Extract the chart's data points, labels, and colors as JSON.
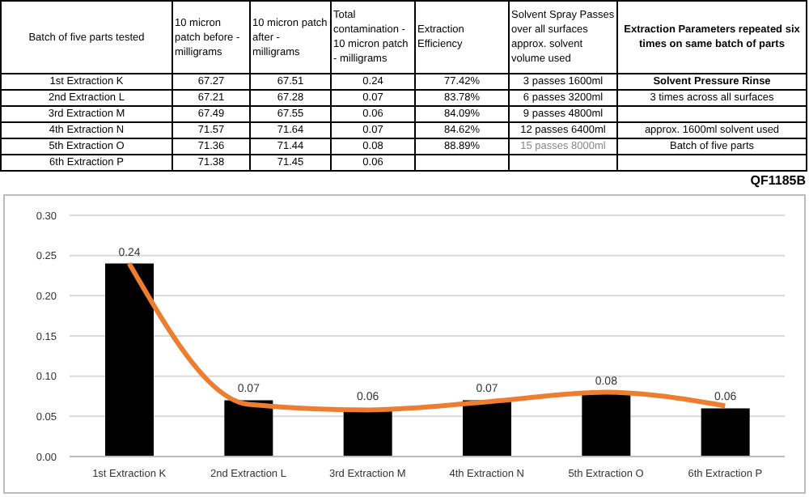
{
  "chart_data": {
    "type": "bar",
    "categories": [
      "1st Extraction K",
      "2nd Extraction L",
      "3rd Extraction M",
      "4th Extraction N",
      "5th Extraction O",
      "6th Extraction P"
    ],
    "series": [
      {
        "color": "#000000",
        "values": [
          0.24,
          0.07,
          0.06,
          0.07,
          0.08,
          0.06
        ],
        "value_labels": [
          "0.24",
          "0.07",
          "0.06",
          "0.07",
          "0.08",
          "0.06"
        ]
      },
      {
        "type": "line",
        "color": "#ed7d31",
        "values": [
          0.24,
          0.065,
          0.058,
          0.068,
          0.08,
          0.063
        ]
      }
    ],
    "ylim": [
      0,
      0.3
    ],
    "yticks": [
      {
        "value": 0,
        "label": "0.00"
      },
      {
        "value": 0.05,
        "label": "0.05"
      },
      {
        "value": 0.1,
        "label": "0.10"
      },
      {
        "value": 0.15,
        "label": "0.15"
      },
      {
        "value": 0.2,
        "label": "0.20"
      },
      {
        "value": 0.25,
        "label": "0.25"
      },
      {
        "value": 0.3,
        "label": "0.30"
      }
    ],
    "grid": "y",
    "marker": "none",
    "annotations": [
      "Batch of five parts tested",
      "10 micron patch before - milligrams",
      "10 micron patch after - milligrams",
      "Total contamination - 10 micron patch - milligrams",
      "Extraction Efficiency",
      "Solvent Spray Passes over all surfaces approx. solvent volume used",
      "Extraction Parameters repeated six times on same batch of parts",
      "1st Extraction K",
      "67.27",
      "67.51",
      "0.24",
      "77.42%",
      "3 passes 1600ml",
      "Solvent Pressure Rinse",
      "2nd Extraction L",
      "67.21",
      "67.28",
      "0.07",
      "83.78%",
      "6 passes 3200ml",
      "3 times across all surfaces",
      "3rd Extraction M",
      "67.49",
      "67.55",
      "0.06",
      "84.09%",
      "9 passes 4800ml",
      "4th Extraction N",
      "71.57",
      "71.64",
      "0.07",
      "84.62%",
      "12 passes 6400ml",
      "approx. 1600ml solvent used",
      "5th Extraction O",
      "71.36",
      "71.44",
      "0.08",
      "88.89%",
      "15 passes 8000ml",
      "Batch of five parts",
      "6th Extraction P",
      "71.38",
      "71.45",
      "0.06",
      "QF1185B"
    ]
  }
}
